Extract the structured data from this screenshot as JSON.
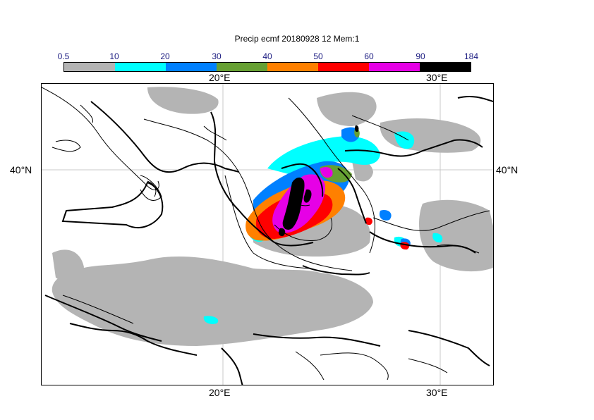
{
  "title": "Precip ecmf 20180928 12 Mem:1",
  "legend": {
    "labels": [
      "0.5",
      "10",
      "20",
      "30",
      "40",
      "50",
      "60",
      "90",
      "184"
    ],
    "colors": [
      "#b4b4b4",
      "#00ffff",
      "#0080ff",
      "#66a033",
      "#ff8000",
      "#ff0000",
      "#e600e6",
      "#000000"
    ]
  },
  "axes": {
    "lon_top": [
      "20°E",
      "30°E"
    ],
    "lon_bottom": [
      "20°E",
      "30°E"
    ],
    "lat_left": [
      "40°N"
    ],
    "lat_right": [
      "40°N"
    ]
  },
  "colors": {
    "gridline": "#c8c8c8",
    "coast": "#000000"
  }
}
